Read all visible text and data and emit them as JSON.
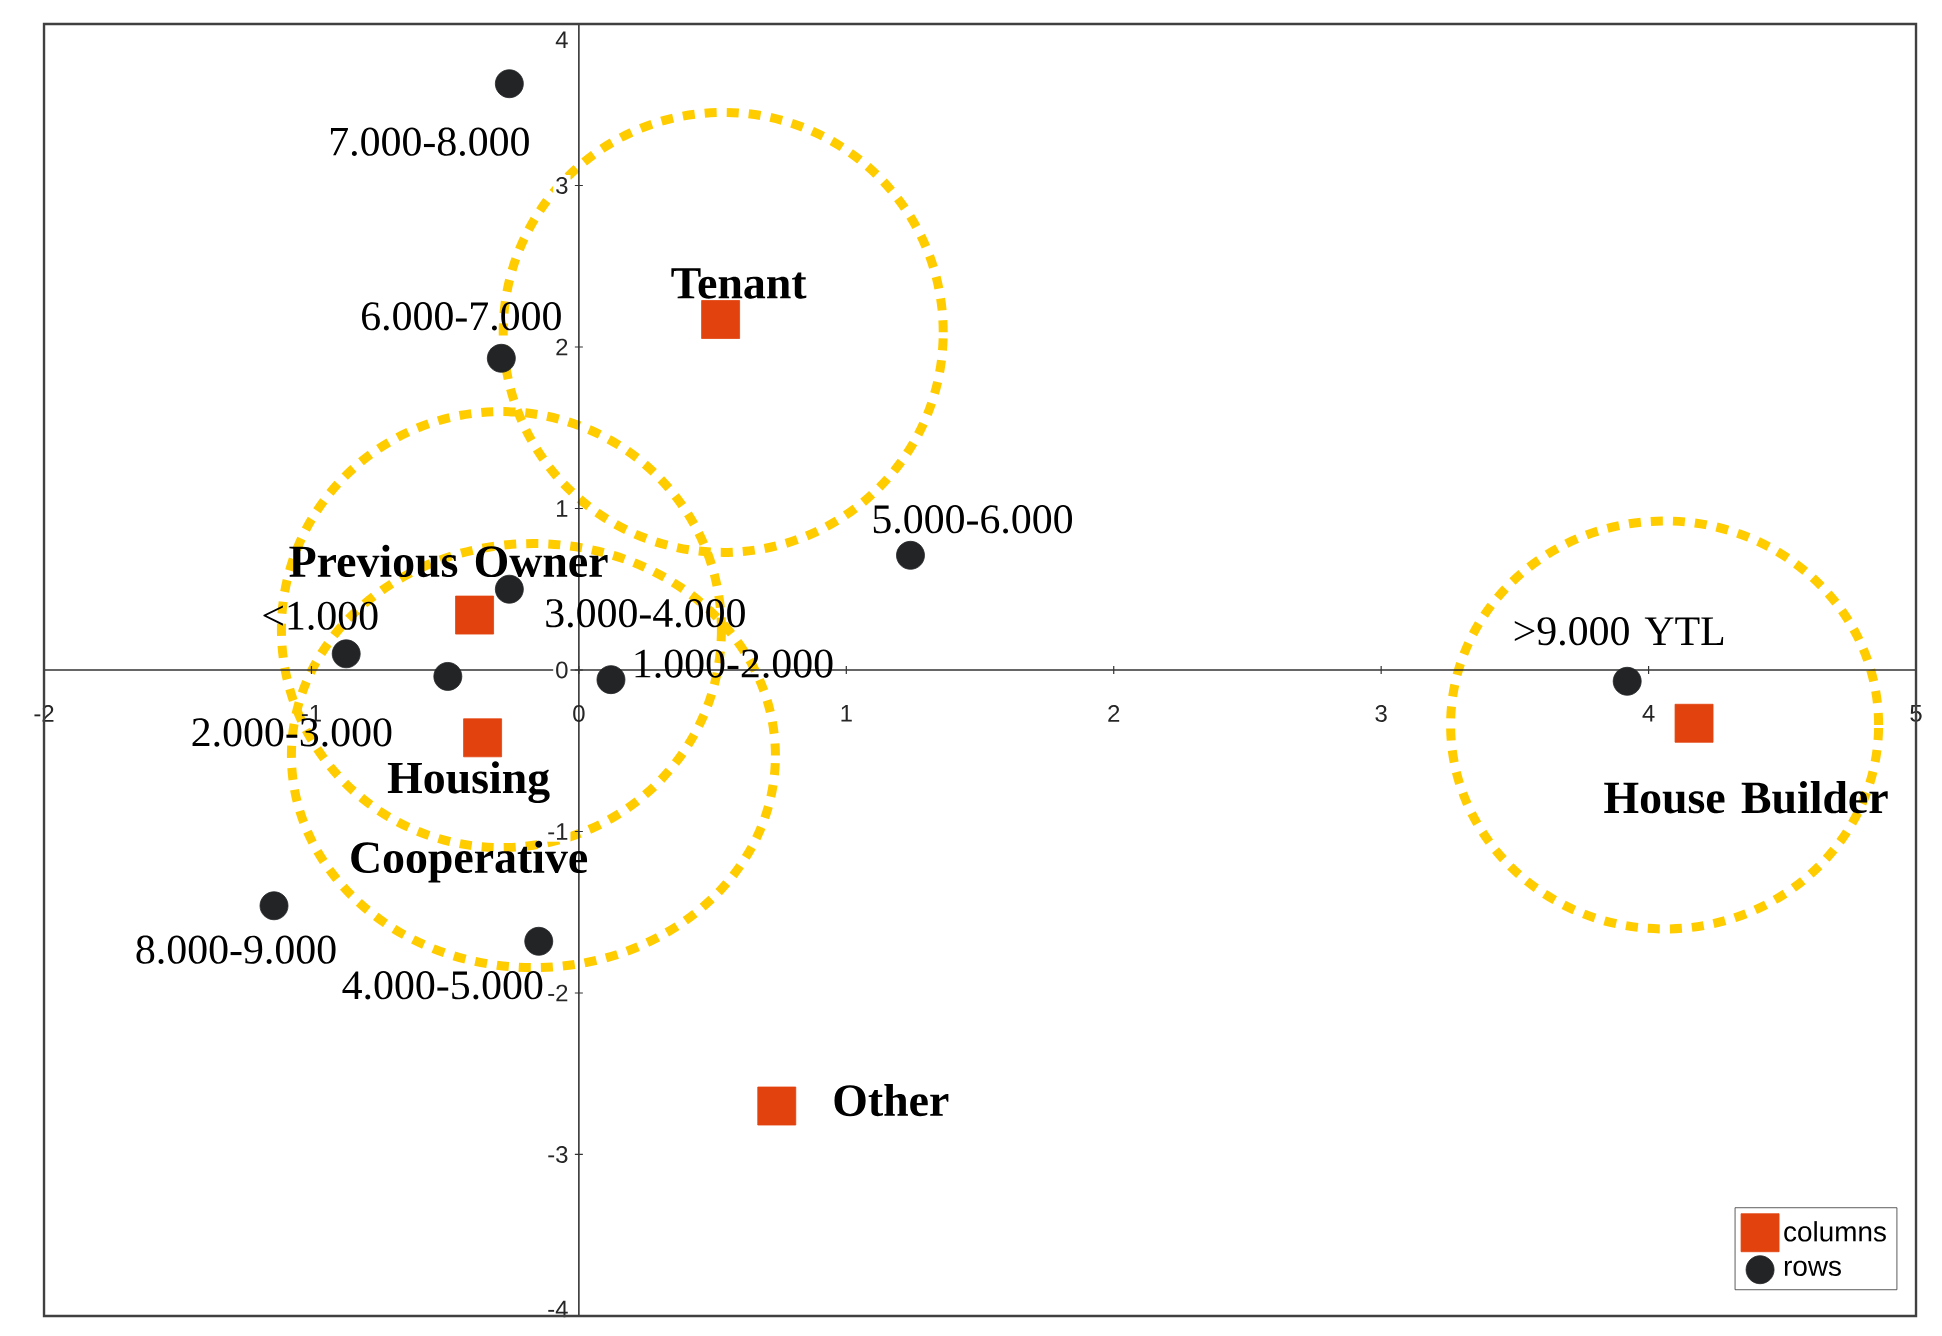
{
  "chart_data": {
    "type": "scatter",
    "xlim": [
      -2,
      5
    ],
    "ylim": [
      -4,
      4
    ],
    "xticks": [
      -2,
      -1,
      0,
      1,
      2,
      3,
      4,
      5
    ],
    "yticks": [
      -4,
      -3,
      -2,
      -1,
      0,
      1,
      2,
      3,
      4
    ],
    "grid": false,
    "legend": "bottom right",
    "series": [
      {
        "name": "columns",
        "color": "#e2420e",
        "marker": "square",
        "x": [
          0.53,
          -0.39,
          -0.36,
          4.17,
          0.74
        ],
        "values": [
          2.17,
          0.34,
          -0.42,
          -0.33,
          -2.7
        ]
      },
      {
        "name": "rows",
        "color": "#222426",
        "marker": "circle",
        "x": [
          -0.26,
          -0.29,
          1.24,
          -0.26,
          -0.87,
          -0.49,
          0.12,
          -1.14,
          -0.15,
          3.92
        ],
        "values": [
          3.63,
          1.93,
          0.71,
          0.5,
          0.1,
          -0.04,
          -0.06,
          -1.46,
          -1.68,
          -0.07
        ]
      }
    ],
    "annotations": [
      {
        "text": "Tenant",
        "x": 0.53,
        "y": 2.17
      },
      {
        "text": "Previous Owner",
        "x": -0.39,
        "y": 0.34
      },
      {
        "text": "Housing Cooperative",
        "x": -0.36,
        "y": -0.42
      },
      {
        "text": "House Builder",
        "x": 4.17,
        "y": -0.33
      },
      {
        "text": "Other",
        "x": 0.74,
        "y": -2.7
      },
      {
        "text": "7.000-8.000",
        "x": -0.26,
        "y": 3.63
      },
      {
        "text": "6.000-7.000",
        "x": -0.29,
        "y": 1.93
      },
      {
        "text": "5.000-6.000",
        "x": 1.24,
        "y": 0.71
      },
      {
        "text": "3.000-4.000",
        "x": -0.26,
        "y": 0.5
      },
      {
        "text": "<1.000",
        "x": -0.87,
        "y": 0.1
      },
      {
        "text": "2.000-3.000",
        "x": -0.49,
        "y": -0.04
      },
      {
        "text": "1.000-2.000",
        "x": 0.12,
        "y": -0.06
      },
      {
        "text": "8.000-9.000",
        "x": -1.14,
        "y": -1.46
      },
      {
        "text": "4.000-5.000",
        "x": -0.15,
        "y": -1.68
      },
      {
        "text": ">9.000 YTL",
        "x": 3.92,
        "y": -0.07
      }
    ]
  }
}
